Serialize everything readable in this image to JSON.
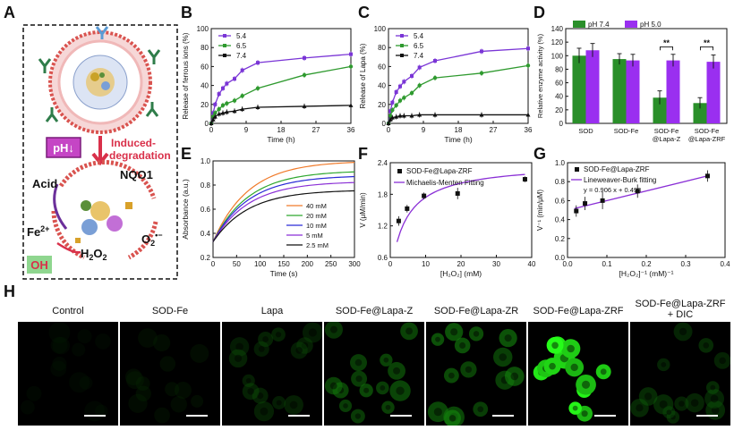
{
  "panels": {
    "A": "A",
    "B": "B",
    "C": "C",
    "D": "D",
    "E": "E",
    "F": "F",
    "G": "G",
    "H": "H"
  },
  "schematic": {
    "ph_label": "pH↓",
    "induced": "Induced-",
    "degradation": "degradation",
    "acid": "Acid",
    "nqo1": "NQO1",
    "fe": "Fe",
    "fe_sup": "2+",
    "h2o2_main": "H",
    "h2o2_sub1": "2",
    "h2o2_o": "O",
    "h2o2_sub2": "2",
    "o2_main": "O",
    "o2_sub": "2",
    "o2_sup": "•−",
    "oh": "OH"
  },
  "chart_data": [
    {
      "id": "B",
      "type": "line",
      "title": "",
      "xlabel": "Time (h)",
      "ylabel": "Release of ferrous ions (%)",
      "xlim": [
        0,
        36
      ],
      "ylim": [
        0,
        100
      ],
      "xticks": [
        "0",
        "9",
        "18",
        "27",
        "36"
      ],
      "yticks": [
        "0",
        "20",
        "40",
        "60",
        "80",
        "100"
      ],
      "legend": [
        "5.4",
        "6.5",
        "7.4"
      ],
      "colors": [
        "#7a35d6",
        "#2f9a2f",
        "#111111"
      ],
      "series": [
        {
          "name": "5.4",
          "x": [
            0,
            0.5,
            1,
            2,
            3,
            4,
            6,
            8,
            12,
            24,
            36
          ],
          "y": [
            0,
            11,
            20,
            31,
            37,
            42,
            47,
            56,
            64,
            69,
            73
          ]
        },
        {
          "name": "6.5",
          "x": [
            0,
            0.5,
            1,
            2,
            3,
            4,
            6,
            8,
            12,
            24,
            36
          ],
          "y": [
            0,
            7,
            11,
            15,
            19,
            21,
            24,
            29,
            37,
            51,
            60
          ]
        },
        {
          "name": "7.4",
          "x": [
            0,
            0.5,
            1,
            2,
            3,
            4,
            6,
            8,
            12,
            24,
            36
          ],
          "y": [
            0,
            4,
            7,
            10,
            11,
            12,
            13,
            15,
            17,
            18,
            19
          ]
        }
      ]
    },
    {
      "id": "C",
      "type": "line",
      "title": "",
      "xlabel": "Time (h)",
      "ylabel": "Release of Lapa (%)",
      "xlim": [
        0,
        36
      ],
      "ylim": [
        0,
        100
      ],
      "xticks": [
        "0",
        "9",
        "18",
        "27",
        "36"
      ],
      "yticks": [
        "0",
        "20",
        "40",
        "60",
        "80",
        "100"
      ],
      "legend": [
        "5.4",
        "6.5",
        "7.4"
      ],
      "colors": [
        "#7a35d6",
        "#2f9a2f",
        "#111111"
      ],
      "series": [
        {
          "name": "5.4",
          "x": [
            0,
            0.5,
            1,
            2,
            3,
            4,
            6,
            8,
            12,
            24,
            36
          ],
          "y": [
            0,
            13,
            22,
            33,
            39,
            44,
            50,
            59,
            66,
            76,
            79
          ]
        },
        {
          "name": "6.5",
          "x": [
            0,
            0.5,
            1,
            2,
            3,
            4,
            6,
            8,
            12,
            24,
            36
          ],
          "y": [
            0,
            8,
            14,
            19,
            24,
            27,
            32,
            40,
            48,
            53,
            61
          ]
        },
        {
          "name": "7.4",
          "x": [
            0,
            0.5,
            1,
            2,
            3,
            4,
            6,
            8,
            12,
            24,
            36
          ],
          "y": [
            0,
            4,
            6,
            7,
            8,
            8,
            8,
            9,
            9,
            9,
            9
          ]
        }
      ]
    },
    {
      "id": "D",
      "type": "bar",
      "title": "",
      "xlabel": "",
      "ylabel": "Relative enzyme activity (%)",
      "ylim": [
        0,
        140
      ],
      "yticks": [
        "0",
        "20",
        "40",
        "60",
        "80",
        "100",
        "120",
        "140"
      ],
      "categories": [
        "SOD",
        "SOD-Fe",
        "SOD-Fe\n@Lapa-Z",
        "SOD-Fe\n@Lapa-ZRF"
      ],
      "legend": [
        "pH 7.4",
        "pH 5.0"
      ],
      "colors": [
        "#2a8f2a",
        "#9a2ff0"
      ],
      "series": [
        {
          "name": "pH 7.4",
          "values": [
            100,
            95,
            38,
            30
          ],
          "errors": [
            11,
            8,
            10,
            8
          ]
        },
        {
          "name": "pH 5.0",
          "values": [
            108,
            93,
            93,
            91
          ],
          "errors": [
            10,
            9,
            9,
            10
          ]
        }
      ],
      "significance": [
        "**",
        "**"
      ]
    },
    {
      "id": "E",
      "type": "line",
      "title": "",
      "xlabel": "Time (s)",
      "ylabel": "Absorbance (a.u.)",
      "xlim": [
        0,
        300
      ],
      "ylim": [
        0.2,
        1.0
      ],
      "xticks": [
        "0",
        "50",
        "100",
        "150",
        "200",
        "250",
        "300"
      ],
      "yticks": [
        "0.2",
        "0.4",
        "0.6",
        "0.8",
        "1.0"
      ],
      "legend": [
        "40 mM",
        "20 mM",
        "10 mM",
        "5  mM",
        "2.5 mM"
      ],
      "colors": [
        "#f07a2a",
        "#2fa82f",
        "#2a2ad6",
        "#8a2fd6",
        "#111111"
      ],
      "series": [
        {
          "name": "40 mM",
          "plateau": 1.0
        },
        {
          "name": "20 mM",
          "plateau": 0.92
        },
        {
          "name": "10 mM",
          "plateau": 0.88
        },
        {
          "name": "5  mM",
          "plateau": 0.83
        },
        {
          "name": "2.5 mM",
          "plateau": 0.76
        }
      ],
      "start": 0.33
    },
    {
      "id": "F",
      "type": "scatter",
      "title": "",
      "xlabel": "[H₂O₂] (mM)",
      "ylabel": "V (μM/min)",
      "xlim": [
        0,
        42
      ],
      "ylim": [
        0.4,
        2.4
      ],
      "xticks": [
        "0",
        "10",
        "20",
        "30",
        "40"
      ],
      "yticks": [
        "0.6",
        "1.2",
        "1.8",
        "2.4"
      ],
      "legend": [
        "SOD-Fe@Lapa-ZRF",
        "Michaelis-Menten Fitting"
      ],
      "points": {
        "x": [
          2.5,
          5,
          10,
          20,
          40
        ],
        "y": [
          1.17,
          1.43,
          1.7,
          1.75,
          2.05
        ],
        "errors": [
          0.1,
          0.08,
          0.07,
          0.12,
          0.06
        ]
      },
      "fit": {
        "vmax": 2.4,
        "km": 4.6
      }
    },
    {
      "id": "G",
      "type": "scatter",
      "title": "",
      "xlabel": "[H₂O₂]⁻¹ (mM)⁻¹",
      "ylabel": "V⁻¹ (min/μM)",
      "xlim": [
        0,
        0.45
      ],
      "ylim": [
        0,
        1.0
      ],
      "xticks": [
        "0.0",
        "0.1",
        "0.2",
        "0.3",
        "0.4"
      ],
      "yticks": [
        "0.0",
        "0.2",
        "0.4",
        "0.6",
        "0.8",
        "1.0"
      ],
      "legend": [
        "SOD-Fe@Lapa-ZRF",
        "Lineweaver-Burk fitting"
      ],
      "equation": "y = 0.906 x + 0.498",
      "points": {
        "x": [
          0.025,
          0.05,
          0.1,
          0.2,
          0.4
        ],
        "y": [
          0.49,
          0.57,
          0.6,
          0.7,
          0.86
        ],
        "errors": [
          0.06,
          0.07,
          0.09,
          0.07,
          0.06
        ]
      },
      "fit": {
        "slope": 0.906,
        "intercept": 0.498
      }
    }
  ],
  "fluorescence": {
    "titles": [
      "Control",
      "SOD-Fe",
      "Lapa",
      "SOD-Fe@Lapa-Z",
      "SOD-Fe@Lapa-ZR",
      "SOD-Fe@Lapa-ZRF",
      "SOD-Fe@Lapa-ZRF",
      "+ DIC"
    ],
    "intensity": [
      0.02,
      0.08,
      0.25,
      0.45,
      0.5,
      1.0,
      0.3
    ]
  }
}
